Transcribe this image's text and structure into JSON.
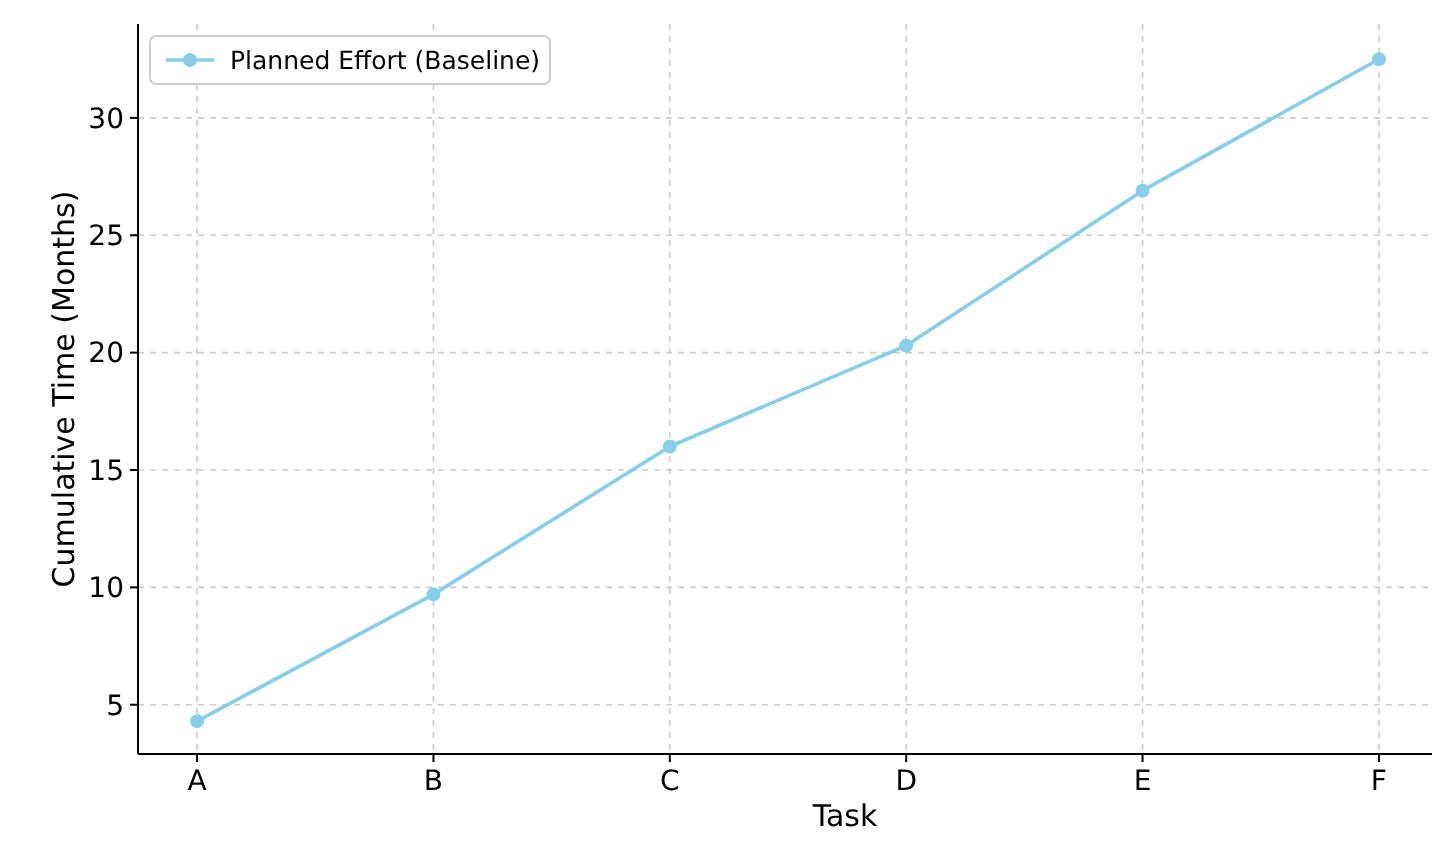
{
  "chart_data": {
    "type": "line",
    "xlabel": "Task",
    "ylabel": "Cumulative Time (Months)",
    "categories": [
      "A",
      "B",
      "C",
      "D",
      "E",
      "F"
    ],
    "series": [
      {
        "name": "Planned Effort (Baseline)",
        "color": "#87ceeb",
        "values": [
          4.3,
          9.7,
          16,
          20.3,
          26.9,
          32.5
        ]
      }
    ],
    "ylim": [
      2.9,
      34
    ],
    "yticks": [
      5,
      10,
      15,
      20,
      25,
      30
    ],
    "grid": true,
    "legend": "top left",
    "marker": "circle",
    "line_style": "solid"
  }
}
